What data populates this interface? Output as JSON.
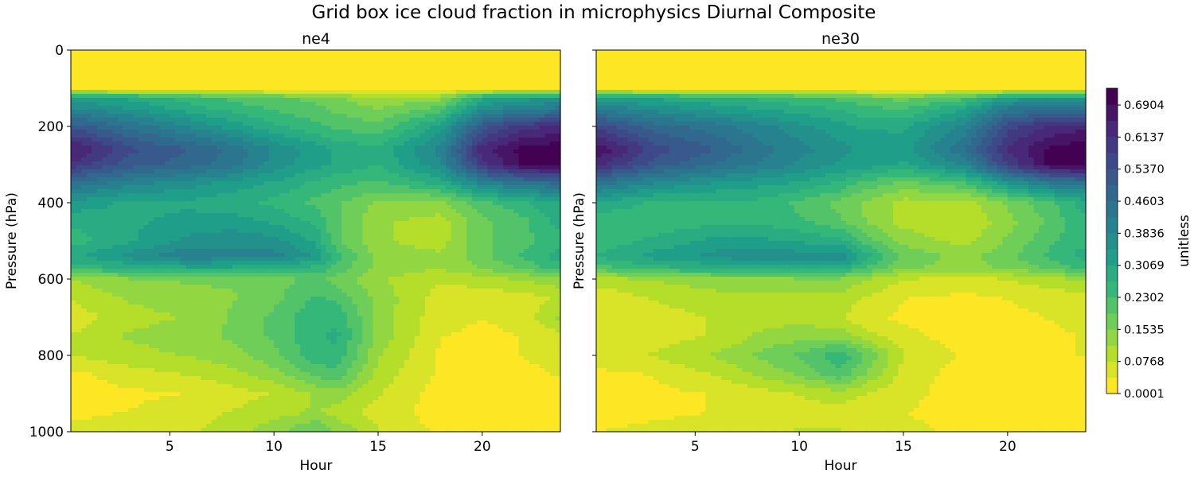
{
  "figure": {
    "title": "Grid box ice cloud fraction in microphysics Diurnal Composite"
  },
  "colormap": {
    "name": "viridis",
    "stops": [
      "#fde725",
      "#b5de2b",
      "#6ece58",
      "#35b779",
      "#1f9e89",
      "#26828e",
      "#31688e",
      "#3e4989",
      "#482878",
      "#440154"
    ]
  },
  "chart_data": [
    {
      "type": "heatmap",
      "subtype": "filled-contour",
      "title": "ne4",
      "xlabel": "Hour",
      "ylabel": "Pressure (hPa)",
      "xlim": [
        0.25,
        23.75
      ],
      "ylim": [
        1000,
        0
      ],
      "y_inverted": true,
      "xticks": [
        "5",
        "10",
        "15",
        "20"
      ],
      "yticks": [
        "0",
        "200",
        "400",
        "600",
        "800",
        "1000"
      ],
      "grid": false,
      "x": [
        0.5,
        3,
        6,
        8,
        10,
        12,
        13,
        15,
        18,
        20,
        22,
        23.5
      ],
      "y": [
        0,
        100,
        125,
        150,
        200,
        260,
        300,
        350,
        400,
        450,
        500,
        540,
        570,
        600,
        650,
        700,
        750,
        800,
        850,
        900,
        950,
        1000
      ],
      "z": [
        [
          0.0,
          0.0,
          0.0,
          0.0,
          0.0,
          0.0,
          0.0,
          0.0,
          0.0,
          0.0,
          0.0,
          0.0
        ],
        [
          0.0,
          0.0,
          0.0,
          0.0,
          0.0,
          0.0,
          0.0,
          0.0,
          0.0,
          0.0,
          0.0,
          0.0
        ],
        [
          0.32,
          0.3,
          0.25,
          0.22,
          0.2,
          0.18,
          0.16,
          0.12,
          0.14,
          0.3,
          0.33,
          0.34
        ],
        [
          0.38,
          0.34,
          0.28,
          0.25,
          0.22,
          0.2,
          0.18,
          0.15,
          0.2,
          0.36,
          0.4,
          0.42
        ],
        [
          0.52,
          0.45,
          0.38,
          0.33,
          0.28,
          0.24,
          0.22,
          0.2,
          0.32,
          0.52,
          0.6,
          0.62
        ],
        [
          0.66,
          0.55,
          0.5,
          0.45,
          0.38,
          0.33,
          0.3,
          0.28,
          0.4,
          0.64,
          0.71,
          0.72
        ],
        [
          0.6,
          0.52,
          0.48,
          0.44,
          0.37,
          0.32,
          0.3,
          0.27,
          0.38,
          0.6,
          0.7,
          0.71
        ],
        [
          0.45,
          0.4,
          0.36,
          0.33,
          0.3,
          0.26,
          0.24,
          0.22,
          0.28,
          0.4,
          0.44,
          0.46
        ],
        [
          0.33,
          0.3,
          0.3,
          0.28,
          0.26,
          0.22,
          0.2,
          0.15,
          0.14,
          0.22,
          0.26,
          0.3
        ],
        [
          0.28,
          0.3,
          0.32,
          0.33,
          0.3,
          0.26,
          0.2,
          0.12,
          0.1,
          0.18,
          0.22,
          0.28
        ],
        [
          0.25,
          0.3,
          0.36,
          0.37,
          0.36,
          0.3,
          0.2,
          0.12,
          0.1,
          0.18,
          0.22,
          0.25
        ],
        [
          0.3,
          0.36,
          0.42,
          0.4,
          0.4,
          0.34,
          0.25,
          0.14,
          0.12,
          0.18,
          0.24,
          0.28
        ],
        [
          0.25,
          0.28,
          0.3,
          0.3,
          0.28,
          0.26,
          0.22,
          0.14,
          0.12,
          0.16,
          0.2,
          0.25
        ],
        [
          0.12,
          0.15,
          0.16,
          0.16,
          0.18,
          0.2,
          0.18,
          0.12,
          0.08,
          0.1,
          0.12,
          0.14
        ],
        [
          0.08,
          0.12,
          0.14,
          0.15,
          0.18,
          0.24,
          0.22,
          0.14,
          0.06,
          0.05,
          0.06,
          0.08
        ],
        [
          0.06,
          0.1,
          0.12,
          0.16,
          0.2,
          0.26,
          0.26,
          0.14,
          0.05,
          0.04,
          0.05,
          0.12
        ],
        [
          0.08,
          0.12,
          0.14,
          0.16,
          0.2,
          0.26,
          0.28,
          0.14,
          0.04,
          0.03,
          0.04,
          0.06
        ],
        [
          0.08,
          0.1,
          0.12,
          0.14,
          0.18,
          0.26,
          0.26,
          0.12,
          0.03,
          0.03,
          0.04,
          0.05
        ],
        [
          0.03,
          0.06,
          0.08,
          0.1,
          0.14,
          0.2,
          0.22,
          0.1,
          0.03,
          0.02,
          0.03,
          0.04
        ],
        [
          0.02,
          0.03,
          0.04,
          0.06,
          0.08,
          0.12,
          0.14,
          0.08,
          0.02,
          0.02,
          0.02,
          0.02
        ],
        [
          0.03,
          0.04,
          0.06,
          0.08,
          0.1,
          0.12,
          0.1,
          0.06,
          0.02,
          0.02,
          0.02,
          0.02
        ],
        [
          0.05,
          0.06,
          0.07,
          0.1,
          0.14,
          0.2,
          0.15,
          0.08,
          0.03,
          0.02,
          0.02,
          0.03
        ]
      ]
    },
    {
      "type": "heatmap",
      "subtype": "filled-contour",
      "title": "ne30",
      "xlabel": "Hour",
      "ylabel": "Pressure (hPa)",
      "xlim": [
        0.25,
        23.75
      ],
      "ylim": [
        1000,
        0
      ],
      "y_inverted": true,
      "xticks": [
        "5",
        "10",
        "15",
        "20"
      ],
      "yticks": [],
      "grid": false,
      "x": [
        0.5,
        3,
        6,
        8,
        10,
        12,
        13,
        15,
        18,
        20,
        22,
        23.5
      ],
      "y": [
        0,
        100,
        125,
        150,
        200,
        260,
        300,
        350,
        400,
        450,
        500,
        540,
        570,
        600,
        650,
        700,
        750,
        800,
        850,
        900,
        950,
        1000
      ],
      "z": [
        [
          0.0,
          0.0,
          0.0,
          0.0,
          0.0,
          0.0,
          0.0,
          0.0,
          0.0,
          0.0,
          0.0,
          0.0
        ],
        [
          0.0,
          0.0,
          0.0,
          0.0,
          0.0,
          0.0,
          0.0,
          0.0,
          0.0,
          0.0,
          0.0,
          0.0
        ],
        [
          0.32,
          0.3,
          0.28,
          0.26,
          0.24,
          0.22,
          0.2,
          0.18,
          0.22,
          0.32,
          0.34,
          0.34
        ],
        [
          0.4,
          0.36,
          0.32,
          0.3,
          0.28,
          0.26,
          0.24,
          0.22,
          0.3,
          0.42,
          0.44,
          0.44
        ],
        [
          0.56,
          0.48,
          0.44,
          0.4,
          0.36,
          0.32,
          0.3,
          0.3,
          0.4,
          0.56,
          0.62,
          0.64
        ],
        [
          0.68,
          0.56,
          0.5,
          0.44,
          0.4,
          0.36,
          0.34,
          0.33,
          0.46,
          0.62,
          0.7,
          0.72
        ],
        [
          0.62,
          0.52,
          0.46,
          0.42,
          0.38,
          0.34,
          0.33,
          0.3,
          0.4,
          0.58,
          0.7,
          0.72
        ],
        [
          0.44,
          0.38,
          0.34,
          0.32,
          0.3,
          0.26,
          0.22,
          0.18,
          0.22,
          0.34,
          0.42,
          0.44
        ],
        [
          0.3,
          0.26,
          0.26,
          0.26,
          0.22,
          0.18,
          0.15,
          0.1,
          0.1,
          0.16,
          0.22,
          0.28
        ],
        [
          0.24,
          0.24,
          0.26,
          0.26,
          0.24,
          0.2,
          0.16,
          0.1,
          0.08,
          0.14,
          0.2,
          0.26
        ],
        [
          0.24,
          0.28,
          0.32,
          0.32,
          0.3,
          0.28,
          0.22,
          0.14,
          0.1,
          0.16,
          0.22,
          0.26
        ],
        [
          0.28,
          0.32,
          0.36,
          0.37,
          0.37,
          0.38,
          0.3,
          0.18,
          0.14,
          0.18,
          0.24,
          0.28
        ],
        [
          0.22,
          0.26,
          0.28,
          0.3,
          0.3,
          0.3,
          0.24,
          0.16,
          0.14,
          0.16,
          0.2,
          0.24
        ],
        [
          0.1,
          0.12,
          0.14,
          0.14,
          0.15,
          0.15,
          0.12,
          0.08,
          0.06,
          0.08,
          0.1,
          0.12
        ],
        [
          0.05,
          0.08,
          0.1,
          0.1,
          0.1,
          0.1,
          0.08,
          0.04,
          0.03,
          0.04,
          0.05,
          0.06
        ],
        [
          0.04,
          0.06,
          0.08,
          0.1,
          0.1,
          0.08,
          0.05,
          0.03,
          0.02,
          0.03,
          0.04,
          0.05
        ],
        [
          0.04,
          0.06,
          0.08,
          0.12,
          0.14,
          0.14,
          0.1,
          0.05,
          0.02,
          0.02,
          0.03,
          0.04
        ],
        [
          0.06,
          0.08,
          0.12,
          0.16,
          0.2,
          0.26,
          0.2,
          0.08,
          0.03,
          0.02,
          0.03,
          0.04
        ],
        [
          0.03,
          0.04,
          0.08,
          0.12,
          0.16,
          0.22,
          0.16,
          0.06,
          0.02,
          0.02,
          0.02,
          0.03
        ],
        [
          0.02,
          0.03,
          0.04,
          0.06,
          0.08,
          0.1,
          0.08,
          0.05,
          0.02,
          0.02,
          0.02,
          0.02
        ],
        [
          0.02,
          0.03,
          0.04,
          0.05,
          0.06,
          0.06,
          0.05,
          0.04,
          0.02,
          0.02,
          0.02,
          0.02
        ],
        [
          0.04,
          0.05,
          0.06,
          0.07,
          0.08,
          0.08,
          0.07,
          0.05,
          0.03,
          0.02,
          0.02,
          0.03
        ]
      ]
    }
  ],
  "colorbar": {
    "label": "unitless",
    "vmin": 0.0001,
    "vmax": 0.7305,
    "levels": 19,
    "ticks": [
      {
        "value": 0.0001,
        "label": "0.0001"
      },
      {
        "value": 0.0768,
        "label": "0.0768"
      },
      {
        "value": 0.1535,
        "label": "0.1535"
      },
      {
        "value": 0.2302,
        "label": "0.2302"
      },
      {
        "value": 0.3069,
        "label": "0.3069"
      },
      {
        "value": 0.3836,
        "label": "0.3836"
      },
      {
        "value": 0.4603,
        "label": "0.4603"
      },
      {
        "value": 0.537,
        "label": "0.5370"
      },
      {
        "value": 0.6137,
        "label": "0.6137"
      },
      {
        "value": 0.6904,
        "label": "0.6904"
      }
    ]
  }
}
